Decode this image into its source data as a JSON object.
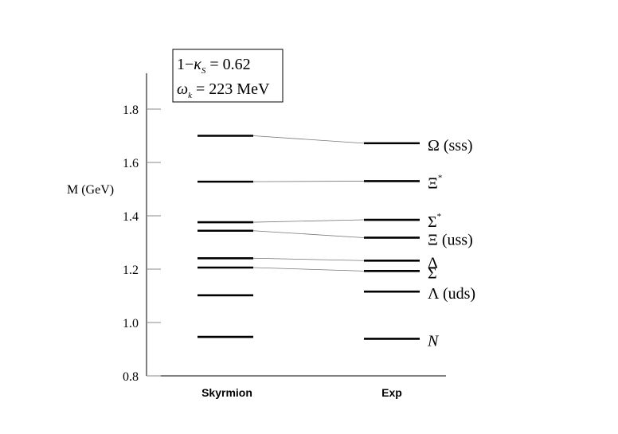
{
  "chart_data": {
    "type": "level-diagram",
    "ylabel": "M (GeV)",
    "ylim": [
      0.8,
      1.9
    ],
    "yticks": [
      "0.8",
      "1.0",
      "1.2",
      "1.4",
      "1.6",
      "1.8"
    ],
    "ytick_values": [
      0.8,
      1.0,
      1.2,
      1.4,
      1.6,
      1.8
    ],
    "columns": [
      "Skyrmion",
      "Exp"
    ],
    "annotation": {
      "line1": {
        "prefix": "1−",
        "symbol": "κ",
        "sub": "S",
        "suffix": " = 0.62"
      },
      "line2": {
        "symbol": "ω",
        "sub": "k",
        "suffix": " = 223 MeV"
      }
    },
    "skyrmion": [
      0.946,
      1.102,
      1.206,
      1.241,
      1.344,
      1.376,
      1.528,
      1.7
    ],
    "exp": [
      {
        "value": 0.939,
        "label": "N",
        "italic": true,
        "sup": ""
      },
      {
        "value": 1.116,
        "label": "Λ (uds)",
        "italic": false,
        "sup": ""
      },
      {
        "value": 1.193,
        "label": "Σ",
        "italic": false,
        "sup": ""
      },
      {
        "value": 1.232,
        "label": "Δ",
        "italic": false,
        "sup": ""
      },
      {
        "value": 1.318,
        "label": "Ξ  (uss)",
        "italic": false,
        "sup": ""
      },
      {
        "value": 1.385,
        "label": "Σ",
        "italic": false,
        "sup": "*"
      },
      {
        "value": 1.53,
        "label": "Ξ",
        "italic": false,
        "sup": "*"
      },
      {
        "value": 1.672,
        "label": "Ω (sss)",
        "italic": false,
        "sup": ""
      }
    ],
    "connectors": [
      [
        2,
        2
      ],
      [
        3,
        3
      ],
      [
        4,
        4
      ],
      [
        5,
        5
      ],
      [
        6,
        6
      ],
      [
        7,
        7
      ]
    ]
  }
}
